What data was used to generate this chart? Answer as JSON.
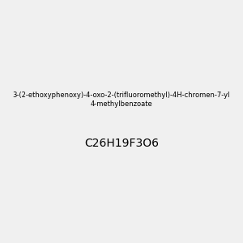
{
  "title": "",
  "background_color": "#f0f0f0",
  "bond_color": "#1a1a1a",
  "oxygen_color": "#ff0000",
  "fluorine_color": "#cc00cc",
  "carbon_color": "#1a1a1a",
  "fig_width": 3.0,
  "fig_height": 3.0,
  "dpi": 100,
  "molecule_name": "3-(2-ethoxyphenoxy)-4-oxo-2-(trifluoromethyl)-4H-chromen-7-yl 4-methylbenzoate",
  "formula": "C26H19F3O6",
  "use_rdkit": true
}
